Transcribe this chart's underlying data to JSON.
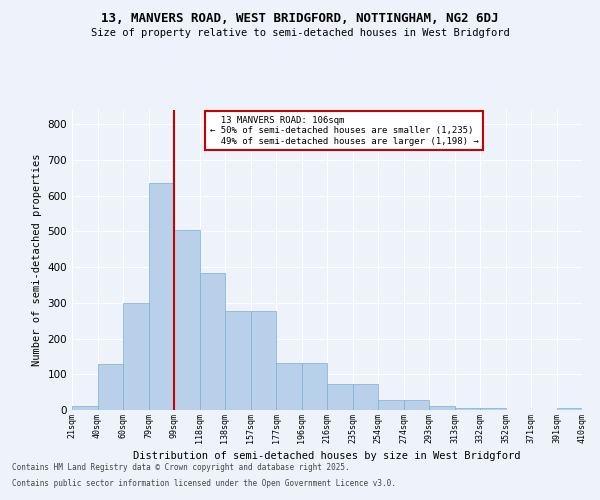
{
  "title1": "13, MANVERS ROAD, WEST BRIDGFORD, NOTTINGHAM, NG2 6DJ",
  "title2": "Size of property relative to semi-detached houses in West Bridgford",
  "xlabel": "Distribution of semi-detached houses by size in West Bridgford",
  "ylabel": "Number of semi-detached properties",
  "bar_values": [
    10,
    130,
    300,
    635,
    505,
    383,
    278,
    278,
    132,
    132,
    73,
    73,
    28,
    28,
    12,
    5,
    5,
    0,
    0,
    5
  ],
  "bin_labels": [
    "21sqm",
    "40sqm",
    "60sqm",
    "79sqm",
    "99sqm",
    "118sqm",
    "138sqm",
    "157sqm",
    "177sqm",
    "196sqm",
    "216sqm",
    "235sqm",
    "254sqm",
    "274sqm",
    "293sqm",
    "313sqm",
    "332sqm",
    "352sqm",
    "371sqm",
    "391sqm",
    "410sqm"
  ],
  "bar_color": "#b8d0ea",
  "bar_edge_color": "#7bafd4",
  "vline_x_index": 4,
  "vline_color": "#cc0000",
  "property_label": "13 MANVERS ROAD: 106sqm",
  "pct_smaller": "50% of semi-detached houses are smaller (1,235)",
  "pct_larger": "49% of semi-detached houses are larger (1,198)",
  "annotation_box_color": "white",
  "annotation_box_edge": "#cc0000",
  "bg_color": "#eef2fb",
  "plot_bg_color": "#eef2fb",
  "grid_color": "#ffffff",
  "footer1": "Contains HM Land Registry data © Crown copyright and database right 2025.",
  "footer2": "Contains public sector information licensed under the Open Government Licence v3.0.",
  "ylim": [
    0,
    840
  ],
  "yticks": [
    0,
    100,
    200,
    300,
    400,
    500,
    600,
    700,
    800
  ]
}
